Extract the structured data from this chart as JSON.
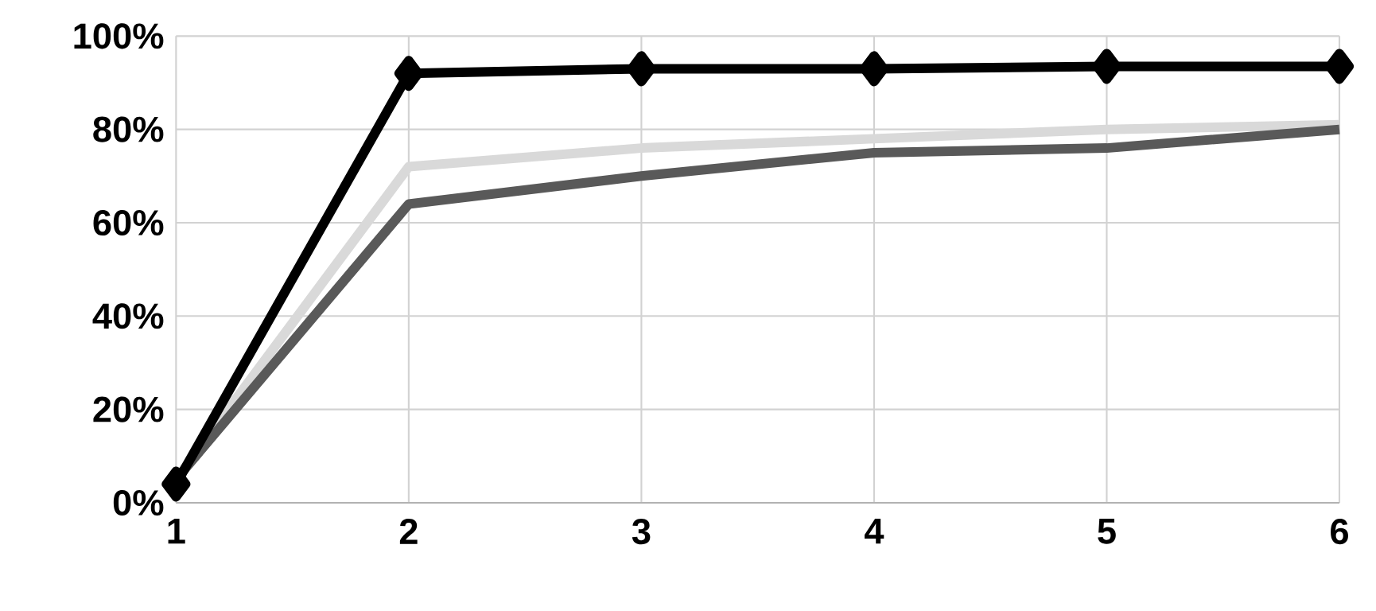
{
  "chart_data": {
    "type": "line",
    "x": [
      1,
      2,
      3,
      4,
      5,
      6
    ],
    "series": [
      {
        "color": "#d9d9d9",
        "values": [
          5,
          72,
          76,
          78,
          80,
          81
        ],
        "marker": "none"
      },
      {
        "color": "#595959",
        "values": [
          5,
          64,
          70,
          75,
          76,
          80
        ],
        "marker": "none"
      },
      {
        "color": "#000000",
        "values": [
          4,
          92,
          93,
          93,
          93.5,
          93.5
        ],
        "marker": "diamond"
      }
    ],
    "xlim": [
      1,
      6
    ],
    "xticks": [
      1,
      2,
      3,
      4,
      5,
      6
    ],
    "ylim": [
      0,
      100
    ],
    "yticks": [
      {
        "value": 0,
        "label": "0%"
      },
      {
        "value": 20,
        "label": "20%"
      },
      {
        "value": 40,
        "label": "40%"
      },
      {
        "value": 60,
        "label": "60%"
      },
      {
        "value": 80,
        "label": "80%"
      },
      {
        "value": 100,
        "label": "100%"
      }
    ],
    "grid": true,
    "line_style": "solid"
  }
}
